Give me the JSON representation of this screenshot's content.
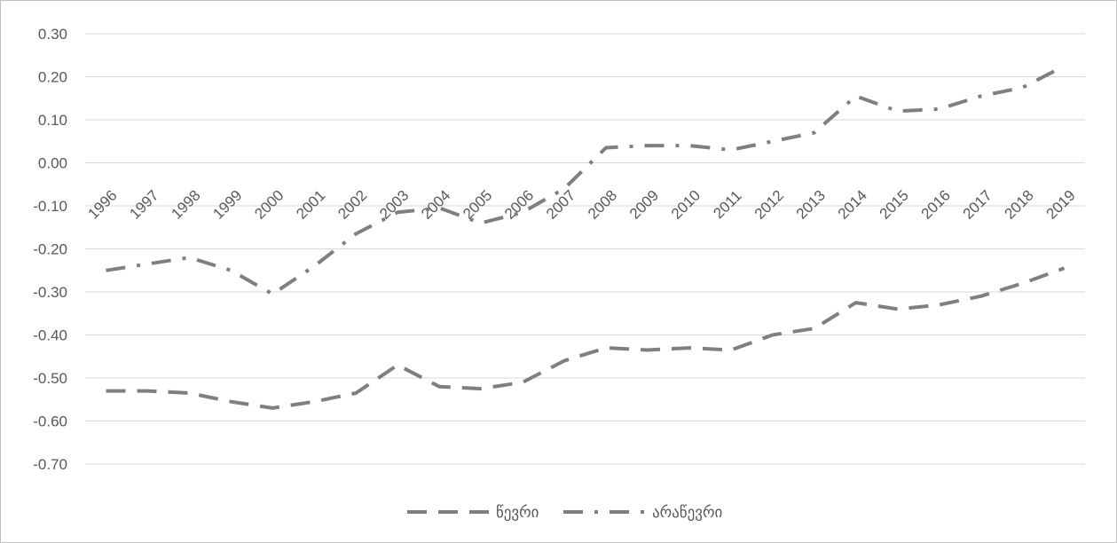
{
  "chart_data": {
    "type": "line",
    "title": "",
    "xlabel": "",
    "ylabel": "",
    "categories": [
      "1996",
      "1997",
      "1998",
      "1999",
      "2000",
      "2001",
      "2002",
      "2003",
      "2004",
      "2005",
      "2006",
      "2007",
      "2008",
      "2009",
      "2010",
      "2011",
      "2012",
      "2013",
      "2014",
      "2015",
      "2016",
      "2017",
      "2018",
      "2019"
    ],
    "ylim": [
      -0.7,
      0.3
    ],
    "yticks": [
      "0.30",
      "0.20",
      "0.10",
      "0.00",
      "-0.10",
      "-0.20",
      "-0.30",
      "-0.40",
      "-0.50",
      "-0.60",
      "-0.70"
    ],
    "grid": "horizontal",
    "legend_position": "bottom",
    "series": [
      {
        "name": "წევრი",
        "dash": "dash",
        "color": "#7f7f7f",
        "values": [
          -0.53,
          -0.53,
          -0.535,
          -0.555,
          -0.57,
          -0.555,
          -0.535,
          -0.47,
          -0.52,
          -0.525,
          -0.51,
          -0.46,
          -0.43,
          -0.435,
          -0.43,
          -0.435,
          -0.4,
          -0.385,
          -0.325,
          -0.34,
          -0.33,
          -0.31,
          -0.28,
          -0.245
        ]
      },
      {
        "name": "არაწევრი",
        "dash": "dashdot",
        "color": "#7f7f7f",
        "values": [
          -0.25,
          -0.235,
          -0.22,
          -0.25,
          -0.305,
          -0.24,
          -0.165,
          -0.115,
          -0.105,
          -0.14,
          -0.115,
          -0.06,
          0.035,
          0.04,
          0.04,
          0.03,
          0.05,
          0.07,
          0.155,
          0.12,
          0.125,
          0.155,
          0.175,
          0.225
        ]
      }
    ]
  }
}
